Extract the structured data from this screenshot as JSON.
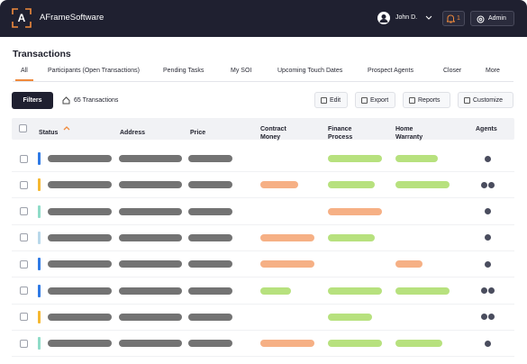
{
  "header": {
    "logo": "A",
    "app_name": "AFrameSoftware",
    "user": "John D.",
    "notifications": "1",
    "admin": "Admin"
  },
  "page": {
    "title": "Transactions",
    "tabs": [
      "All",
      "Participants (Open Transactions)",
      "Pending Tasks",
      "My SOI",
      "Upcoming Touch Dates",
      "Prospect Agents",
      "Closer",
      "More"
    ],
    "filters": "Filters",
    "count": "65 Transactions",
    "actions": [
      "Edit",
      "Export",
      "Reports",
      "Customize"
    ]
  },
  "table": {
    "columns": [
      "Status",
      "Address",
      "Price",
      "Contract Money",
      "Finance Process",
      "Home Warranty",
      "Agents"
    ]
  }
}
